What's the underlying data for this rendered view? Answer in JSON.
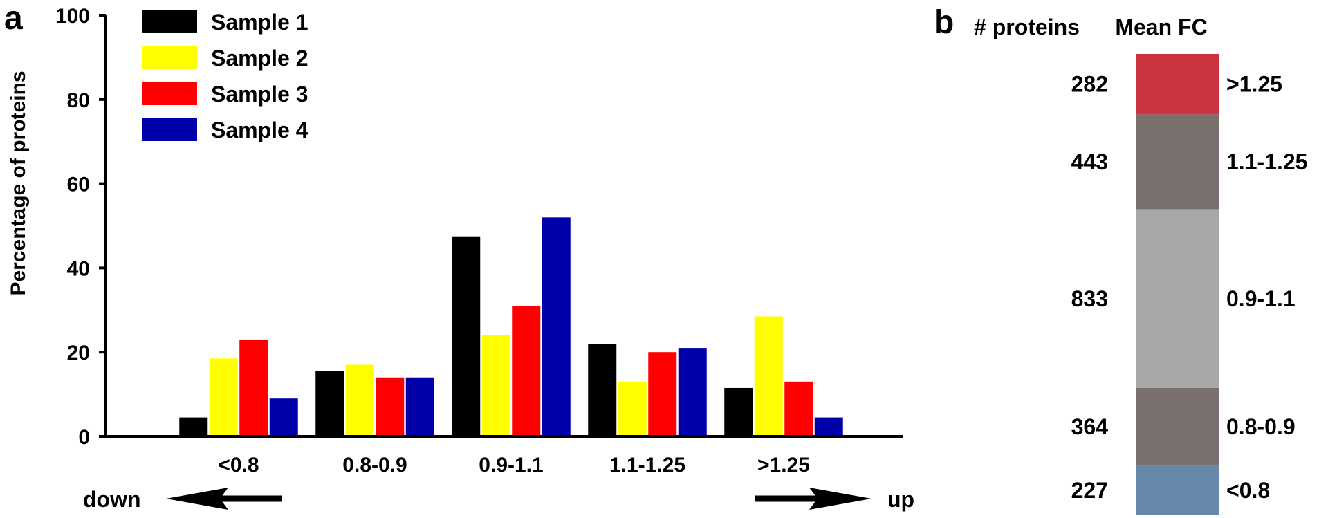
{
  "panel_a": {
    "label": "a",
    "chart_data": {
      "type": "bar",
      "categories": [
        "<0.8",
        "0.8-0.9",
        "0.9-1.1",
        "1.1-1.25",
        ">1.25"
      ],
      "series": [
        {
          "name": "Sample 1",
          "color": "#000000",
          "values": [
            4.5,
            15.5,
            47.5,
            22,
            11.5
          ]
        },
        {
          "name": "Sample 2",
          "color": "#ffff00",
          "values": [
            18.5,
            17,
            24,
            13,
            28.5
          ]
        },
        {
          "name": "Sample 3",
          "color": "#ff0000",
          "values": [
            23,
            14,
            31,
            20,
            13
          ]
        },
        {
          "name": "Sample 4",
          "color": "#0000aa",
          "values": [
            9,
            14,
            52,
            21,
            4.5
          ]
        }
      ],
      "ylabel": "Percentage of proteins",
      "xlabel": "",
      "ylim": [
        0,
        100
      ],
      "yticks": [
        0,
        20,
        40,
        60,
        80,
        100
      ],
      "legend_position": "top-left",
      "grid": false
    },
    "annotations": {
      "down_label": "down",
      "up_label": "up"
    }
  },
  "panel_b": {
    "label": "b",
    "header_count": "# proteins",
    "header_fc": "Mean FC",
    "chart_data": {
      "type": "table",
      "segments": [
        {
          "category": ">1.25",
          "count": 282,
          "color": "#cc3340"
        },
        {
          "category": "1.1-1.25",
          "count": 443,
          "color": "#7a716f"
        },
        {
          "category": "0.9-1.1",
          "count": 833,
          "color": "#a9a8a8"
        },
        {
          "category": "0.8-0.9",
          "count": 364,
          "color": "#7a716f"
        },
        {
          "category": "<0.8",
          "count": 227,
          "color": "#6688aa"
        }
      ]
    }
  }
}
